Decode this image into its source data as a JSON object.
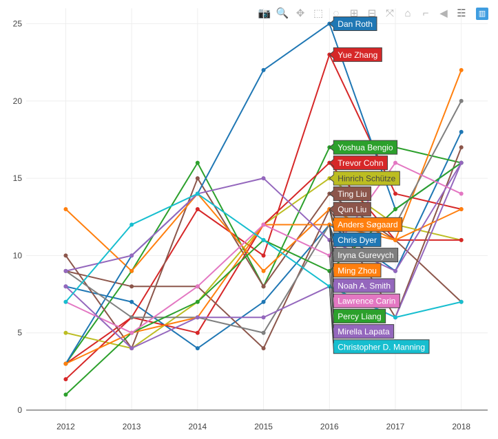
{
  "modebar": {
    "buttons": [
      {
        "name": "camera-icon",
        "glyph": "📷"
      },
      {
        "name": "zoom-icon",
        "glyph": "🔍"
      },
      {
        "name": "pan-icon",
        "glyph": "✥"
      },
      {
        "name": "box-select-icon",
        "glyph": "⬚"
      },
      {
        "name": "lasso-select-icon",
        "glyph": "◌"
      },
      {
        "name": "zoom-in-icon",
        "glyph": "⊞"
      },
      {
        "name": "zoom-out-icon",
        "glyph": "⊟"
      },
      {
        "name": "autoscale-icon",
        "glyph": "⤧"
      },
      {
        "name": "reset-axes-icon",
        "glyph": "⌂"
      },
      {
        "name": "spike-lines-icon",
        "glyph": "⌐"
      },
      {
        "name": "hover-closest-icon",
        "glyph": "◀"
      },
      {
        "name": "hover-compare-icon",
        "glyph": "☰"
      },
      {
        "name": "plotly-logo-icon",
        "glyph": "▥"
      }
    ]
  },
  "chart_data": {
    "type": "line",
    "title": "",
    "xlabel": "",
    "ylabel": "",
    "x": [
      2012,
      2013,
      2014,
      2015,
      2016,
      2017,
      2018
    ],
    "xlim": [
      2011.4,
      2018.4
    ],
    "ylim": [
      0,
      26
    ],
    "yticks": [
      0,
      5,
      10,
      15,
      20,
      25
    ],
    "grid": true,
    "hover_x": 2016,
    "series": [
      {
        "name": "Chris Dyer",
        "color": "#1f77b4",
        "values": [
          8,
          7,
          4,
          7,
          12,
          9,
          18
        ]
      },
      {
        "name": "Yue Zhang",
        "color": "#d62728",
        "values": [
          3,
          6,
          13,
          10,
          23,
          14,
          13
        ]
      },
      {
        "name": "Hinrich Schütze",
        "color": "#bcbd22",
        "values": [
          5,
          4,
          7,
          12,
          15,
          12,
          11
        ]
      },
      {
        "name": "Yoshua Bengio",
        "color": "#2ca02c",
        "values": [
          3,
          9,
          16,
          8,
          17,
          17,
          16
        ]
      },
      {
        "name": "Trevor Cohn",
        "color": "#d62728",
        "values": [
          2,
          6,
          5,
          12,
          16,
          11,
          11
        ]
      },
      {
        "name": "Ting Liu",
        "color": "#8c564b",
        "values": [
          10,
          4,
          15,
          8,
          14,
          11,
          7
        ]
      },
      {
        "name": "Qun Liu",
        "color": "#8c564b",
        "values": [
          9,
          8,
          8,
          4,
          13,
          6,
          17
        ]
      },
      {
        "name": "Anders Søgaard",
        "color": "#ff7f0e",
        "values": [
          13,
          9,
          14,
          9,
          13,
          11,
          22
        ]
      },
      {
        "name": "Dan Roth",
        "color": "#1f77b4",
        "values": [
          3,
          10,
          14,
          22,
          25,
          13,
          16
        ]
      },
      {
        "name": "Iryna Gurevych",
        "color": "#7f7f7f",
        "values": [
          9,
          6,
          6,
          5,
          12,
          12,
          20
        ]
      },
      {
        "name": "Ming Zhou",
        "color": "#ff7f0e",
        "values": [
          3,
          5,
          6,
          12,
          12,
          11,
          13
        ]
      },
      {
        "name": "Noah A. Smith",
        "color": "#9467bd",
        "values": [
          9,
          10,
          14,
          15,
          11,
          9,
          16
        ]
      },
      {
        "name": "Percy Liang",
        "color": "#2ca02c",
        "values": [
          1,
          5,
          7,
          11,
          9,
          13,
          16
        ]
      },
      {
        "name": "Lawrence Carin",
        "color": "#e377c2",
        "values": [
          7,
          5,
          8,
          12,
          10,
          16,
          14
        ]
      },
      {
        "name": "Mirella Lapata",
        "color": "#9467bd",
        "values": [
          8,
          4,
          6,
          6,
          8,
          6,
          16
        ]
      },
      {
        "name": "Christopher D. Manning",
        "color": "#17becf",
        "values": [
          7,
          12,
          14,
          11,
          8,
          6,
          7
        ]
      }
    ]
  }
}
